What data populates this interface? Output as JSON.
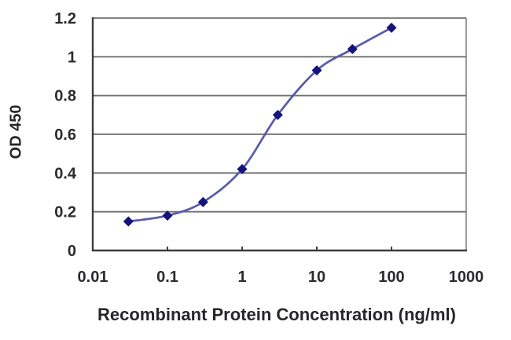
{
  "chart_data": {
    "type": "line",
    "title": "",
    "xlabel": "Recombinant Protein Concentration (ng/ml)",
    "ylabel": "OD 450",
    "x_scale": "log",
    "xlim": [
      0.01,
      1000
    ],
    "ylim": [
      0,
      1.2
    ],
    "x_ticks": [
      0.01,
      0.1,
      1,
      10,
      100,
      1000
    ],
    "x_tick_labels": [
      "0.01",
      "0.1",
      "1",
      "10",
      "100",
      "1000"
    ],
    "x_minor_tick_marks": [
      0.1,
      1,
      10,
      100
    ],
    "y_ticks": [
      0,
      0.2,
      0.4,
      0.6,
      0.8,
      1,
      1.2
    ],
    "y_tick_labels": [
      "0",
      "0.2",
      "0.4",
      "0.6",
      "0.8",
      "1",
      "1.2"
    ],
    "grid": "horizontal",
    "legend": "none",
    "series": [
      {
        "name": "OD 450",
        "marker": "diamond",
        "x": [
          0.03,
          0.1,
          0.3,
          1,
          3,
          10,
          30,
          100
        ],
        "y": [
          0.15,
          0.18,
          0.25,
          0.42,
          0.7,
          0.93,
          1.04,
          1.15
        ]
      }
    ],
    "colors": {
      "background": "#ffffff",
      "gridline": "#6f6f6f",
      "border": "#7a7a7a",
      "axis": "#3d3d3d",
      "tick_text": "#2b2b31",
      "title_text": "#26262b",
      "line": "#5a5aad",
      "marker": "#14147a"
    }
  }
}
